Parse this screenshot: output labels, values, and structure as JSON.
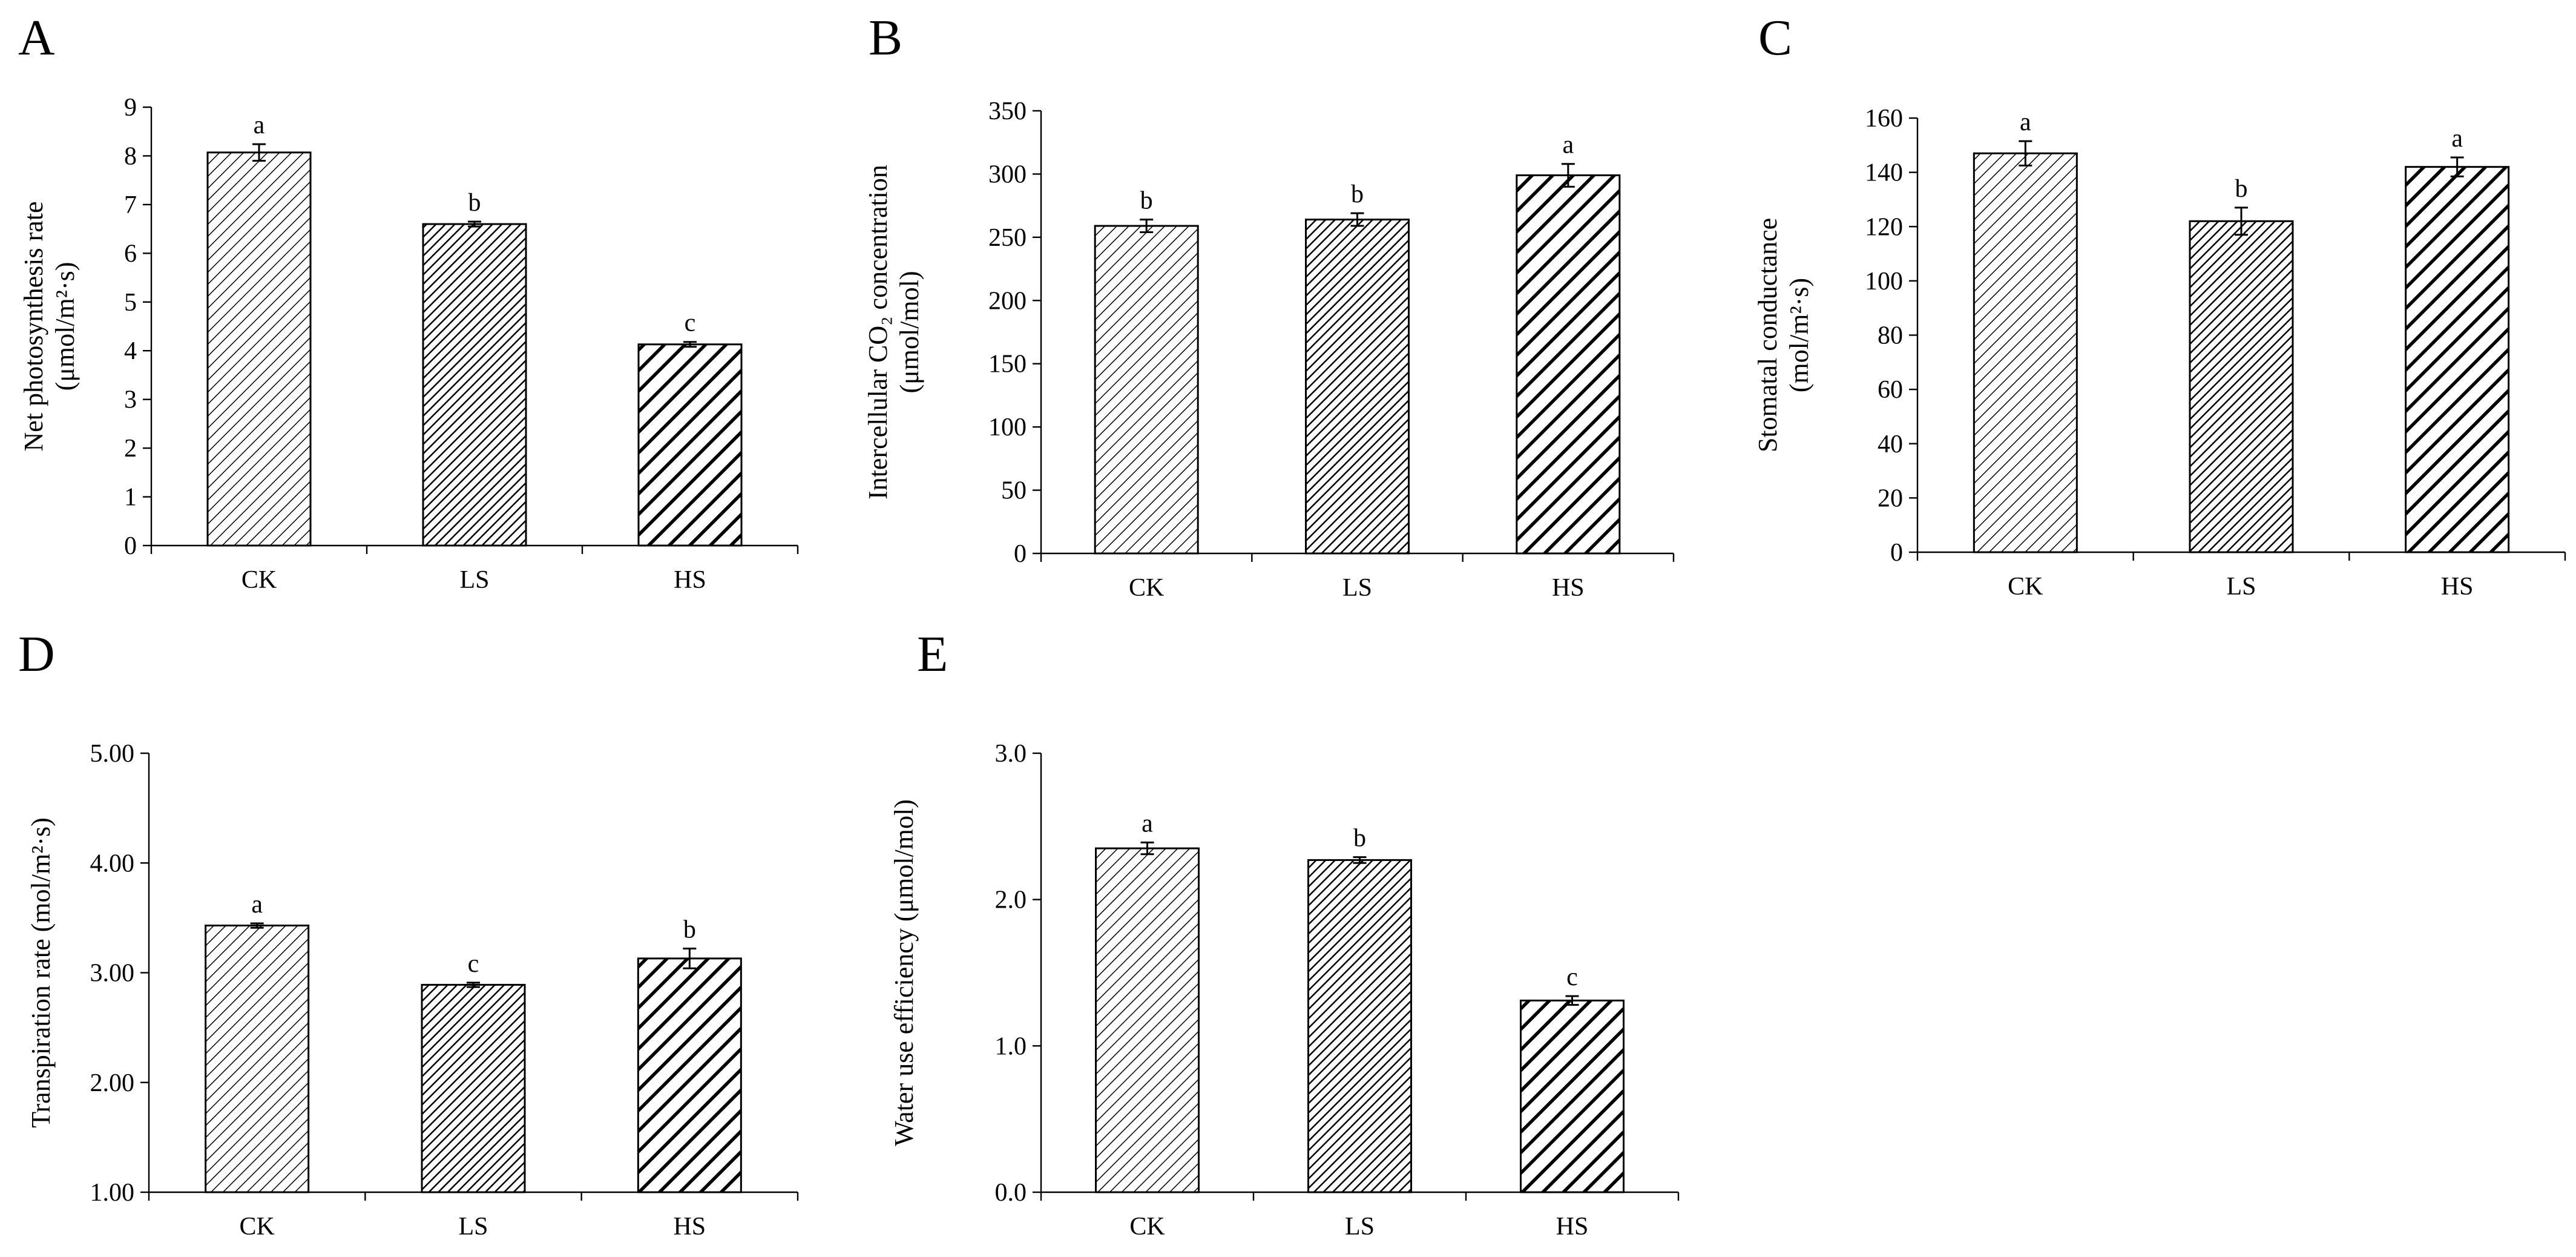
{
  "chart_data": [
    {
      "type": "bar",
      "panel": "A",
      "title": "",
      "xlabel": "",
      "ylabel_lines": [
        "Net photosynthesis rate",
        "(μmol/m²·s)"
      ],
      "categories": [
        "CK",
        "LS",
        "HS"
      ],
      "values": [
        8.07,
        6.6,
        4.13
      ],
      "errors": [
        0.17,
        0.05,
        0.05
      ],
      "significance": [
        "a",
        "b",
        "c"
      ],
      "ylim": [
        0,
        9
      ],
      "ytick_labels": [
        "0",
        "1",
        "2",
        "3",
        "4",
        "5",
        "6",
        "7",
        "8",
        "9"
      ],
      "grid": false
    },
    {
      "type": "bar",
      "panel": "B",
      "title": "",
      "xlabel": "",
      "ylabel_lines": [
        "Intercellular CO₂ concentration",
        "(μmol/mol)"
      ],
      "categories": [
        "CK",
        "LS",
        "HS"
      ],
      "values": [
        259,
        264,
        299
      ],
      "errors": [
        5,
        5,
        9
      ],
      "significance": [
        "b",
        "b",
        "a"
      ],
      "ylim": [
        0,
        350
      ],
      "ytick_labels": [
        "0",
        "50",
        "100",
        "150",
        "200",
        "250",
        "300",
        "350"
      ],
      "grid": false
    },
    {
      "type": "bar",
      "panel": "C",
      "title": "",
      "xlabel": "",
      "ylabel_lines": [
        "Stomatal conductance",
        "(mol/m²·s)"
      ],
      "categories": [
        "CK",
        "LS",
        "HS"
      ],
      "values": [
        147,
        122,
        142
      ],
      "errors": [
        4.5,
        5,
        3.5
      ],
      "significance": [
        "a",
        "b",
        "a"
      ],
      "ylim": [
        0,
        160
      ],
      "ytick_labels": [
        "0",
        "20",
        "40",
        "60",
        "80",
        "100",
        "120",
        "140",
        "160"
      ],
      "grid": false
    },
    {
      "type": "bar",
      "panel": "D",
      "title": "",
      "xlabel": "",
      "ylabel_lines": [
        "Transpiration rate (mol/m²·s)"
      ],
      "categories": [
        "CK",
        "LS",
        "HS"
      ],
      "values": [
        3.43,
        2.89,
        3.13
      ],
      "errors": [
        0.02,
        0.02,
        0.09
      ],
      "significance": [
        "a",
        "c",
        "b"
      ],
      "ylim": [
        1,
        5
      ],
      "ytick_labels": [
        "1.00",
        "2.00",
        "3.00",
        "4.00",
        "5.00"
      ],
      "grid": false
    },
    {
      "type": "bar",
      "panel": "E",
      "title": "",
      "xlabel": "",
      "ylabel_lines": [
        "Water use efficiency (μmol/mol)"
      ],
      "categories": [
        "CK",
        "LS",
        "HS"
      ],
      "values": [
        2.35,
        2.27,
        1.31
      ],
      "errors": [
        0.04,
        0.02,
        0.03
      ],
      "significance": [
        "a",
        "b",
        "c"
      ],
      "ylim": [
        0,
        3
      ],
      "ytick_labels": [
        "0.0",
        "1.0",
        "2.0",
        "3.0"
      ],
      "grid": false
    }
  ]
}
